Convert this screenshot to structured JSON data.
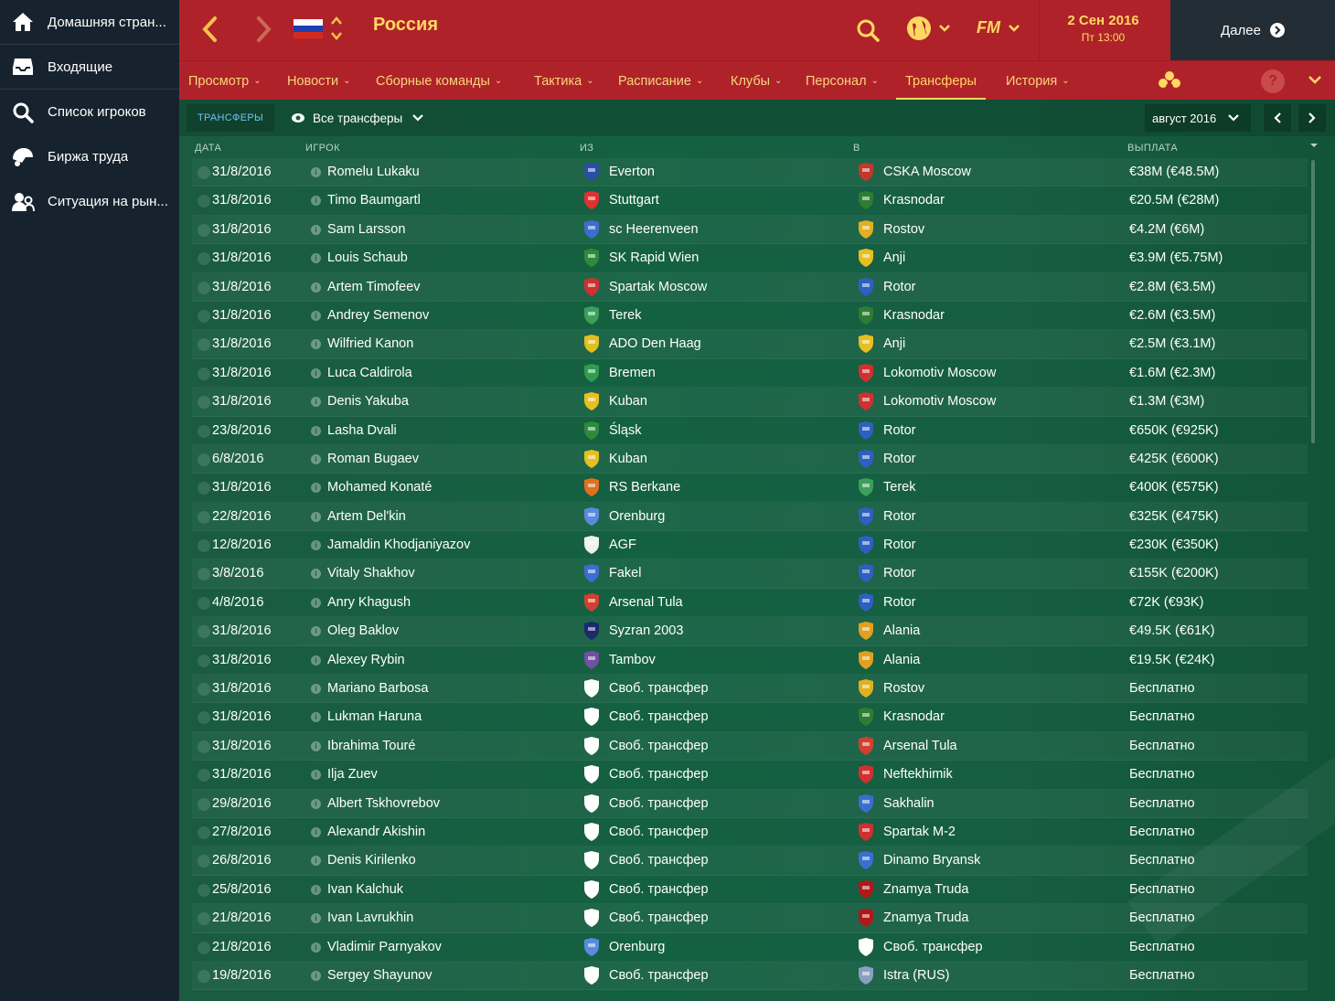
{
  "sidebar": {
    "items": [
      {
        "label": "Домашняя стран...",
        "icon": "home-icon"
      },
      {
        "label": "Входящие",
        "icon": "inbox-icon"
      },
      {
        "label": "Список игроков",
        "icon": "search-icon"
      },
      {
        "label": "Биржа труда",
        "icon": "jobs-icon"
      },
      {
        "label": "Ситуация на рын...",
        "icon": "market-icon"
      }
    ]
  },
  "header": {
    "title": "Россия",
    "date": "2 Сен 2016",
    "time": "Пт 13:00",
    "continue_label": "Далее",
    "fm_label": "FM"
  },
  "menu": {
    "items": [
      {
        "label": "Просмотр",
        "dropdown": true
      },
      {
        "label": "Новости",
        "dropdown": true
      },
      {
        "label": "Сборные команды",
        "dropdown": true
      },
      {
        "label": "Тактика",
        "dropdown": true
      },
      {
        "label": "Расписание",
        "dropdown": true
      },
      {
        "label": "Клубы",
        "dropdown": true
      },
      {
        "label": "Персонал",
        "dropdown": true
      },
      {
        "label": "Трансферы",
        "dropdown": false,
        "active": true
      },
      {
        "label": "История",
        "dropdown": true
      }
    ]
  },
  "subbar": {
    "tab": "ТРАНСФЕРЫ",
    "filter": "Все трансферы",
    "month": "август 2016"
  },
  "columns": {
    "date": "ДАТА",
    "player": "ИГРОК",
    "from": "ИЗ",
    "to": "В",
    "fee": "ВЫПЛАТА"
  },
  "colors": {
    "header_red": "#b0222a",
    "accent_yellow": "#ffd862",
    "pitch_green": "#165e42",
    "sidebar_dark": "#16232e"
  },
  "transfers": [
    {
      "date": "31/8/2016",
      "player": "Romelu Lukaku",
      "from": "Everton",
      "to": "CSKA Moscow",
      "fee": "€38M (€48.5M)",
      "from_color": "#2a4fa8",
      "to_color": "#c0392b"
    },
    {
      "date": "31/8/2016",
      "player": "Timo Baumgartl",
      "from": "Stuttgart",
      "to": "Krasnodar",
      "fee": "€20.5M (€28M)",
      "from_color": "#e03030",
      "to_color": "#2e7d32"
    },
    {
      "date": "31/8/2016",
      "player": "Sam Larsson",
      "from": "sc Heerenveen",
      "to": "Rostov",
      "fee": "€4.2M (€6M)",
      "from_color": "#3a6fd0",
      "to_color": "#e0b020"
    },
    {
      "date": "31/8/2016",
      "player": "Louis Schaub",
      "from": "SK Rapid Wien",
      "to": "Anji",
      "fee": "€3.9M (€5.75M)",
      "from_color": "#2e8b3e",
      "to_color": "#e6c020"
    },
    {
      "date": "31/8/2016",
      "player": "Artem Timofeev",
      "from": "Spartak Moscow",
      "to": "Rotor",
      "fee": "€2.8M (€3.5M)",
      "from_color": "#d03030",
      "to_color": "#2f5fc0"
    },
    {
      "date": "31/8/2016",
      "player": "Andrey Semenov",
      "from": "Terek",
      "to": "Krasnodar",
      "fee": "€2.6M (€3.5M)",
      "from_color": "#3aa05a",
      "to_color": "#2e7d32"
    },
    {
      "date": "31/8/2016",
      "player": "Wilfried Kanon",
      "from": "ADO Den Haag",
      "to": "Anji",
      "fee": "€2.5M (€3.1M)",
      "from_color": "#e0c020",
      "to_color": "#e6c020"
    },
    {
      "date": "31/8/2016",
      "player": "Luca Caldirola",
      "from": "Bremen",
      "to": "Lokomotiv Moscow",
      "fee": "€1.6M (€2.3M)",
      "from_color": "#2e9e4e",
      "to_color": "#d03030"
    },
    {
      "date": "31/8/2016",
      "player": "Denis Yakuba",
      "from": "Kuban",
      "to": "Lokomotiv Moscow",
      "fee": "€1.3M (€3M)",
      "from_color": "#e6c020",
      "to_color": "#d03030"
    },
    {
      "date": "23/8/2016",
      "player": "Lasha Dvali",
      "from": "Śląsk",
      "to": "Rotor",
      "fee": "€650K (€925K)",
      "from_color": "#2e8b3e",
      "to_color": "#2f5fc0"
    },
    {
      "date": "6/8/2016",
      "player": "Roman Bugaev",
      "from": "Kuban",
      "to": "Rotor",
      "fee": "€425K (€600K)",
      "from_color": "#e6c020",
      "to_color": "#2f5fc0"
    },
    {
      "date": "31/8/2016",
      "player": "Mohamed Konaté",
      "from": "RS Berkane",
      "to": "Terek",
      "fee": "€400K (€575K)",
      "from_color": "#e07020",
      "to_color": "#3aa05a"
    },
    {
      "date": "22/8/2016",
      "player": "Artem Del'kin",
      "from": "Orenburg",
      "to": "Rotor",
      "fee": "€325K (€475K)",
      "from_color": "#5a8ae0",
      "to_color": "#2f5fc0"
    },
    {
      "date": "12/8/2016",
      "player": "Jamaldin Khodjaniyazov",
      "from": "AGF",
      "to": "Rotor",
      "fee": "€230K (€350K)",
      "from_color": "#f0f0f0",
      "to_color": "#2f5fc0"
    },
    {
      "date": "3/8/2016",
      "player": "Vitaly Shakhov",
      "from": "Fakel",
      "to": "Rotor",
      "fee": "€155K (€200K)",
      "from_color": "#3a6fd0",
      "to_color": "#2f5fc0"
    },
    {
      "date": "4/8/2016",
      "player": "Anry Khagush",
      "from": "Arsenal Tula",
      "to": "Rotor",
      "fee": "€72K (€93K)",
      "from_color": "#d04030",
      "to_color": "#2f5fc0"
    },
    {
      "date": "31/8/2016",
      "player": "Oleg Baklov",
      "from": "Syzran 2003",
      "to": "Alania",
      "fee": "€49.5K (€61K)",
      "from_color": "#1a2a6a",
      "to_color": "#e0a020"
    },
    {
      "date": "31/8/2016",
      "player": "Alexey Rybin",
      "from": "Tambov",
      "to": "Alania",
      "fee": "€19.5K (€24K)",
      "from_color": "#7050a0",
      "to_color": "#e0a020"
    },
    {
      "date": "31/8/2016",
      "player": "Mariano Barbosa",
      "from": "Своб. трансфер",
      "to": "Rostov",
      "fee": "Бесплатно",
      "from_color": "#ffffff",
      "to_color": "#e0b020"
    },
    {
      "date": "31/8/2016",
      "player": "Lukman Haruna",
      "from": "Своб. трансфер",
      "to": "Krasnodar",
      "fee": "Бесплатно",
      "from_color": "#ffffff",
      "to_color": "#2e7d32"
    },
    {
      "date": "31/8/2016",
      "player": "Ibrahima Touré",
      "from": "Своб. трансфер",
      "to": "Arsenal Tula",
      "fee": "Бесплатно",
      "from_color": "#ffffff",
      "to_color": "#d04030"
    },
    {
      "date": "31/8/2016",
      "player": "Ilja Zuev",
      "from": "Своб. трансфер",
      "to": "Neftekhimik",
      "fee": "Бесплатно",
      "from_color": "#ffffff",
      "to_color": "#d03030"
    },
    {
      "date": "29/8/2016",
      "player": "Albert Tskhovrebov",
      "from": "Своб. трансфер",
      "to": "Sakhalin",
      "fee": "Бесплатно",
      "from_color": "#ffffff",
      "to_color": "#3a6fd0"
    },
    {
      "date": "27/8/2016",
      "player": "Alexandr Akishin",
      "from": "Своб. трансфер",
      "to": "Spartak M-2",
      "fee": "Бесплатно",
      "from_color": "#ffffff",
      "to_color": "#d03030"
    },
    {
      "date": "26/8/2016",
      "player": "Denis Kirilenko",
      "from": "Своб. трансфер",
      "to": "Dinamo Bryansk",
      "fee": "Бесплатно",
      "from_color": "#ffffff",
      "to_color": "#3a6fd0"
    },
    {
      "date": "25/8/2016",
      "player": "Ivan Kalchuk",
      "from": "Своб. трансфер",
      "to": "Znamya Truda",
      "fee": "Бесплатно",
      "from_color": "#ffffff",
      "to_color": "#b01818"
    },
    {
      "date": "21/8/2016",
      "player": "Ivan Lavrukhin",
      "from": "Своб. трансфер",
      "to": "Znamya Truda",
      "fee": "Бесплатно",
      "from_color": "#ffffff",
      "to_color": "#b01818"
    },
    {
      "date": "21/8/2016",
      "player": "Vladimir Parnyakov",
      "from": "Orenburg",
      "to": "Своб. трансфер",
      "fee": "Бесплатно",
      "from_color": "#5a8ae0",
      "to_color": "#ffffff"
    },
    {
      "date": "19/8/2016",
      "player": "Sergey Shayunov",
      "from": "Своб. трансфер",
      "to": "Istra (RUS)",
      "fee": "Бесплатно",
      "from_color": "#ffffff",
      "to_color": "#8aa0c0"
    }
  ]
}
